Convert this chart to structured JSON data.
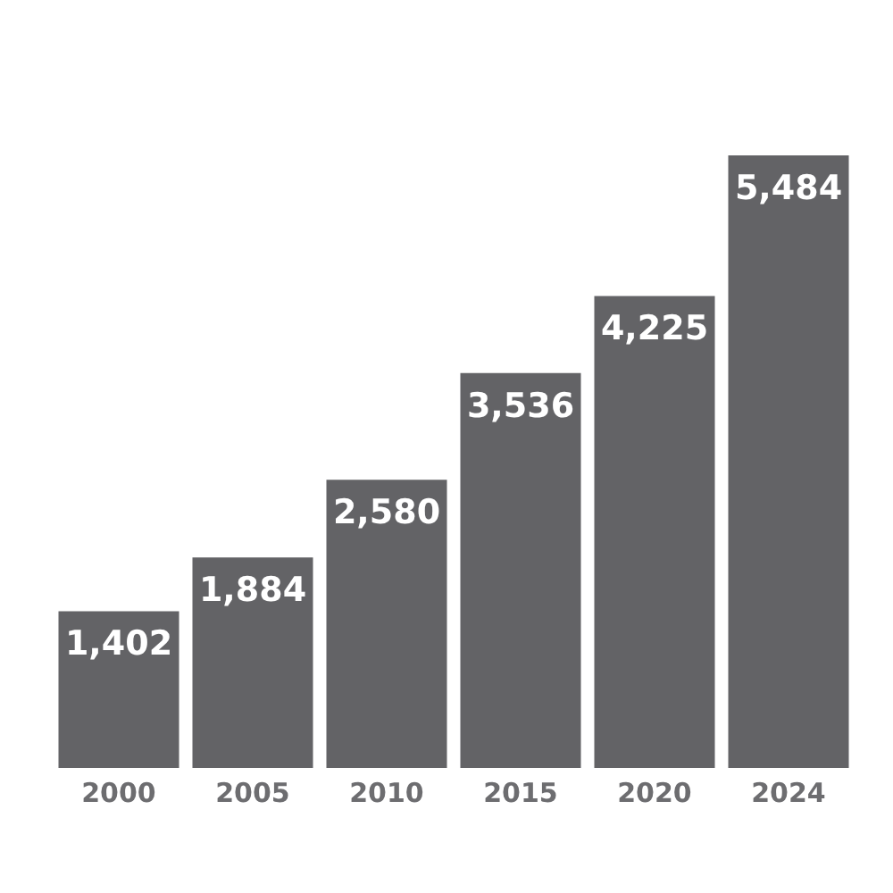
{
  "chart_data": {
    "type": "bar",
    "categories": [
      "2000",
      "2005",
      "2010",
      "2015",
      "2020",
      "2024"
    ],
    "values": [
      1402,
      1884,
      2580,
      3536,
      4225,
      5484
    ],
    "value_labels": [
      "1,402",
      "1,884",
      "2,580",
      "3,536",
      "4,225",
      "5,484"
    ],
    "color": "#636366",
    "grid": false,
    "legend": false
  }
}
